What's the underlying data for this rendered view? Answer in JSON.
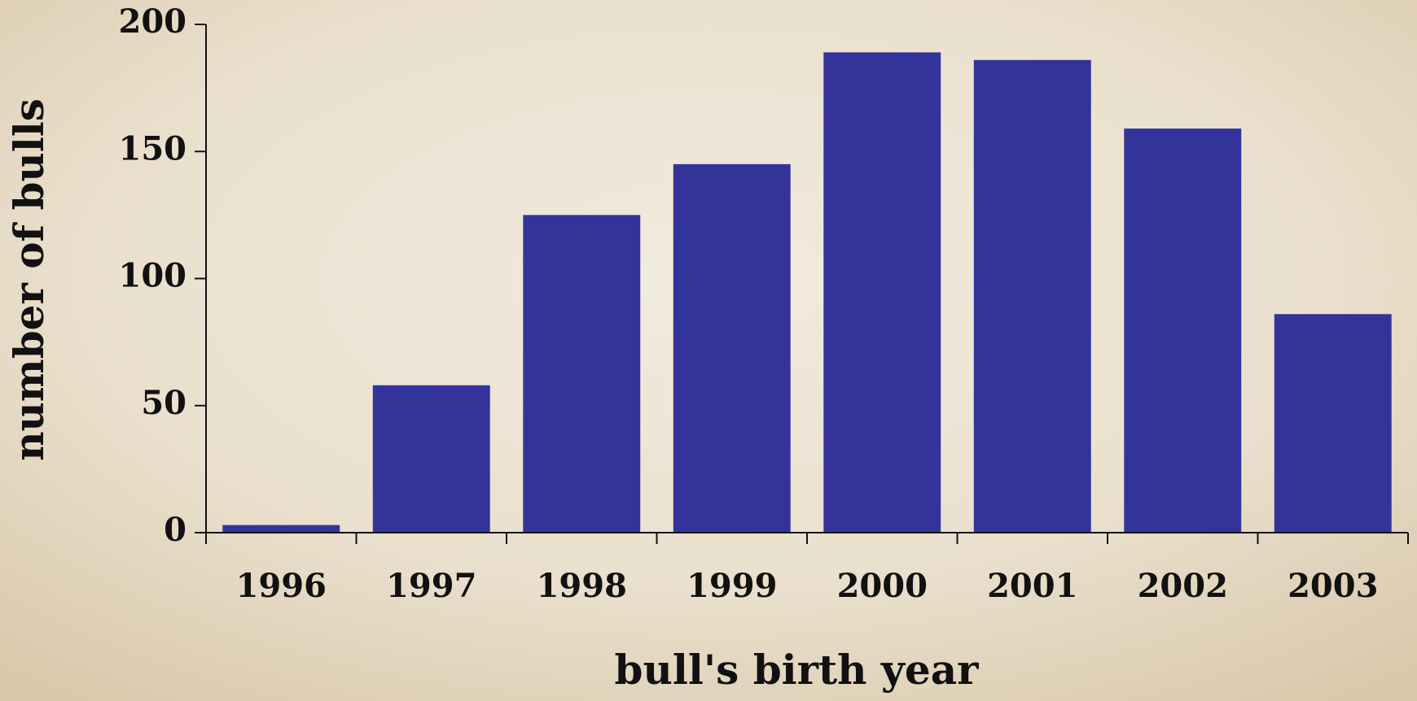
{
  "chart_data": {
    "type": "bar",
    "x_label": "bull's birth year",
    "y_label": "number of bulls",
    "categories": [
      "1996",
      "1997",
      "1998",
      "1999",
      "2000",
      "2001",
      "2002",
      "2003"
    ],
    "values": [
      3,
      58,
      125,
      145,
      189,
      186,
      159,
      86
    ],
    "color": "#34339a",
    "ylim": [
      0,
      200
    ],
    "yticks": [
      0,
      50,
      100,
      150,
      200
    ],
    "grid": false
  }
}
